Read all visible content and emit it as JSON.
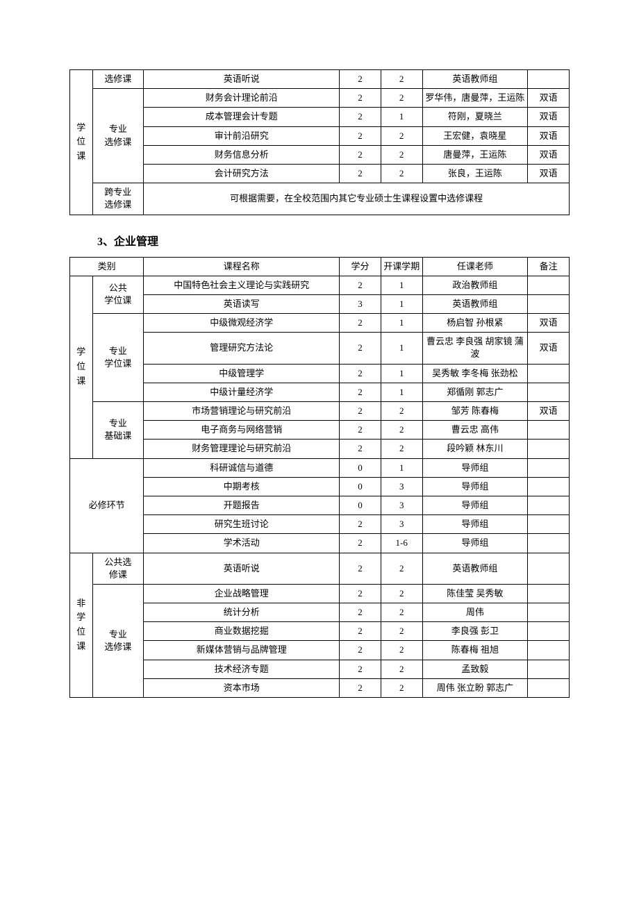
{
  "table1": {
    "left_group_label": "学位课",
    "rows_elective": [
      {
        "cat": "选修课",
        "name": "英语听说",
        "credit": "2",
        "term": "2",
        "teacher": "英语教师组",
        "note": ""
      }
    ],
    "major_elective_label": "专业选修课",
    "rows_major_elective": [
      {
        "name": "财务会计理论前沿",
        "credit": "2",
        "term": "2",
        "teacher": "罗华伟，唐曼萍，王运陈",
        "note": "双语"
      },
      {
        "name": "成本管理会计专题",
        "credit": "2",
        "term": "1",
        "teacher": "符刚，夏晓兰",
        "note": "双语"
      },
      {
        "name": "审计前沿研究",
        "credit": "2",
        "term": "2",
        "teacher": "王宏健，袁晓星",
        "note": "双语"
      },
      {
        "name": "财务信息分析",
        "credit": "2",
        "term": "2",
        "teacher": "唐曼萍，王运陈",
        "note": "双语"
      },
      {
        "name": "会计研究方法",
        "credit": "2",
        "term": "2",
        "teacher": "张良，王运陈",
        "note": "双语"
      }
    ],
    "cross_label": "跨专业选修课",
    "cross_text": "可根据需要，在全校范围内其它专业硕士生课程设置中选修课程"
  },
  "section_title": "3、企业管理",
  "table2": {
    "header": {
      "cat": "类别",
      "name": "课程名称",
      "credit": "学分",
      "term": "开课学期",
      "teacher": "任课老师",
      "note": "备注"
    },
    "degree_label": "学位课",
    "public_label": "公共学位课",
    "public_rows": [
      {
        "name": "中国特色社会主义理论与实践研究",
        "credit": "2",
        "term": "1",
        "teacher": "政治教师组",
        "note": ""
      },
      {
        "name": "英语读写",
        "credit": "3",
        "term": "1",
        "teacher": "英语教师组",
        "note": ""
      }
    ],
    "major_degree_label": "专业学位课",
    "major_degree_rows": [
      {
        "name": "中级微观经济学",
        "credit": "2",
        "term": "1",
        "teacher": "杨启智 孙根紧",
        "note": "双语"
      },
      {
        "name": "管理研究方法论",
        "credit": "2",
        "term": "1",
        "teacher": "曹云忠 李良强 胡家镜 蒲波",
        "note": "双语"
      },
      {
        "name": "中级管理学",
        "credit": "2",
        "term": "1",
        "teacher": "吴秀敏 李冬梅 张劲松",
        "note": ""
      },
      {
        "name": "中级计量经济学",
        "credit": "2",
        "term": "1",
        "teacher": "郑循刚 郭志广",
        "note": ""
      }
    ],
    "major_base_label": "专业基础课",
    "major_base_rows": [
      {
        "name": "市场营销理论与研究前沿",
        "credit": "2",
        "term": "2",
        "teacher": "邹芳 陈春梅",
        "note": "双语"
      },
      {
        "name": "电子商务与网络营销",
        "credit": "2",
        "term": "2",
        "teacher": "曹云忠 高伟",
        "note": ""
      },
      {
        "name": "财务管理理论与研究前沿",
        "credit": "2",
        "term": "2",
        "teacher": "段吟颖 林东川",
        "note": ""
      }
    ],
    "required_label": "必修环节",
    "required_rows": [
      {
        "name": "科研诚信与道德",
        "credit": "0",
        "term": "1",
        "teacher": "导师组",
        "note": ""
      },
      {
        "name": "中期考核",
        "credit": "0",
        "term": "3",
        "teacher": "导师组",
        "note": ""
      },
      {
        "name": "开题报告",
        "credit": "0",
        "term": "3",
        "teacher": "导师组",
        "note": ""
      },
      {
        "name": "研究生班讨论",
        "credit": "2",
        "term": "3",
        "teacher": "导师组",
        "note": ""
      },
      {
        "name": "学术活动",
        "credit": "2",
        "term": "1-6",
        "teacher": "导师组",
        "note": ""
      }
    ],
    "non_degree_label": "非学位课",
    "public_elective_label": "公共选修课",
    "public_elective_row": {
      "name": "英语听说",
      "credit": "2",
      "term": "2",
      "teacher": "英语教师组",
      "note": ""
    },
    "major_elective_label": "专业选修课",
    "major_elective_rows": [
      {
        "name": "企业战略管理",
        "credit": "2",
        "term": "2",
        "teacher": "陈佳莹 吴秀敏",
        "note": ""
      },
      {
        "name": "统计分析",
        "credit": "2",
        "term": "2",
        "teacher": "周伟",
        "note": ""
      },
      {
        "name": "商业数据挖掘",
        "credit": "2",
        "term": "2",
        "teacher": "李良强 彭卫",
        "note": ""
      },
      {
        "name": "新媒体营销与品牌管理",
        "credit": "2",
        "term": "2",
        "teacher": "陈春梅 祖旭",
        "note": ""
      },
      {
        "name": "技术经济专题",
        "credit": "2",
        "term": "2",
        "teacher": "孟致毅",
        "note": ""
      },
      {
        "name": "资本市场",
        "credit": "2",
        "term": "2",
        "teacher": "周伟 张立盼 郭志广",
        "note": ""
      }
    ]
  }
}
